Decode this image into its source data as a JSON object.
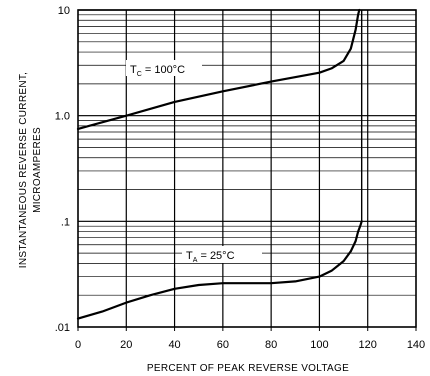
{
  "chart_data": {
    "type": "line",
    "xlabel": "PERCENT OF PEAK REVERSE VOLTAGE",
    "ylabel": [
      "INSTANTANEOUS REVERSE CURRENT,",
      "MICROAMPERES"
    ],
    "x_ticks": [
      "0",
      "20",
      "40",
      "60",
      "80",
      "100",
      "120",
      "140"
    ],
    "y_ticks": [
      {
        "value": 0.01,
        "label": ".01"
      },
      {
        "value": 0.1,
        "label": ".1"
      },
      {
        "value": 1,
        "label": "1.0"
      },
      {
        "value": 10,
        "label": "10"
      }
    ],
    "xlim": [
      0,
      140
    ],
    "ylim": [
      0.01,
      10
    ],
    "y_scale": "log",
    "grid": true,
    "series": [
      {
        "name": "100C",
        "label_main": "T",
        "label_sub": "C",
        "label_rest": " = 100°C",
        "x": [
          0,
          20,
          40,
          60,
          80,
          100,
          105,
          110,
          113,
          115,
          116,
          116.5
        ],
        "y": [
          0.75,
          1.0,
          1.35,
          1.7,
          2.1,
          2.55,
          2.8,
          3.3,
          4.3,
          6.5,
          9.0,
          10.0
        ]
      },
      {
        "name": "25C",
        "label_main": "T",
        "label_sub": "A",
        "label_rest": " = 25°C",
        "x": [
          0,
          10,
          20,
          30,
          40,
          50,
          60,
          70,
          80,
          90,
          100,
          105,
          110,
          113,
          115,
          116,
          117,
          117.5
        ],
        "y": [
          0.012,
          0.014,
          0.017,
          0.02,
          0.023,
          0.025,
          0.026,
          0.026,
          0.026,
          0.027,
          0.03,
          0.034,
          0.042,
          0.052,
          0.065,
          0.08,
          0.092,
          0.1
        ]
      }
    ]
  }
}
